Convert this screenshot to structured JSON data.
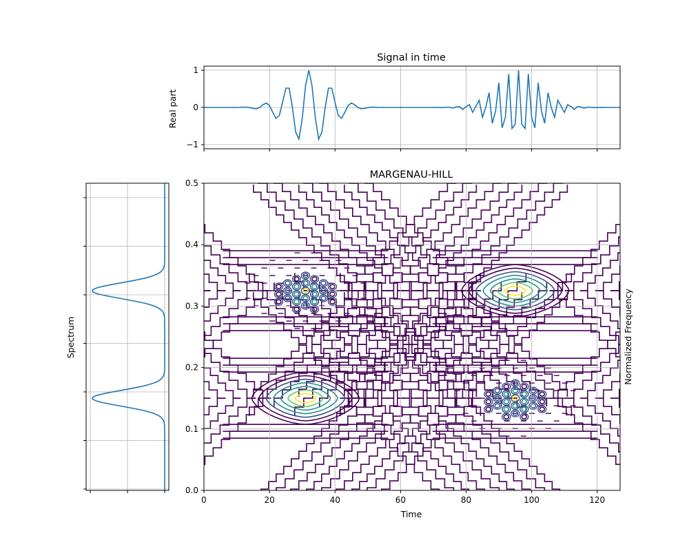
{
  "chart_data": [
    {
      "type": "line",
      "title": "Signal in time",
      "ylabel": "Real part",
      "xlim": [
        0,
        127
      ],
      "ylim": [
        -1,
        1
      ],
      "yticks": [
        -1,
        0,
        1
      ],
      "ytick_labels": [
        "−1",
        "0",
        "1"
      ],
      "xticks": [
        0,
        20,
        40,
        60,
        80,
        100,
        120
      ],
      "grid": true,
      "line_color": "#1f77b4",
      "components": [
        {
          "center": 32,
          "width": 9,
          "frequency": 0.15
        },
        {
          "center": 96,
          "width": 10,
          "frequency": 0.325
        }
      ]
    },
    {
      "type": "line",
      "ylabel": "Spectrum",
      "orientation": "vertical",
      "ylim": [
        0,
        0.5
      ],
      "grid": true,
      "line_color": "#1f77b4",
      "peaks": [
        {
          "frequency": 0.15,
          "level": 1.0
        },
        {
          "frequency": 0.325,
          "level": 1.0
        }
      ]
    },
    {
      "type": "contour",
      "title": "MARGENAU-HILL",
      "xlabel": "Time",
      "ylabel": "Normalized Frequency",
      "xlim": [
        0,
        127
      ],
      "ylim": [
        0,
        0.5
      ],
      "xticks": [
        0,
        20,
        40,
        60,
        80,
        100,
        120
      ],
      "xtick_labels": [
        "0",
        "20",
        "40",
        "60",
        "80",
        "100",
        "120"
      ],
      "yticks": [
        0.0,
        0.1,
        0.2,
        0.3,
        0.4,
        0.5
      ],
      "ytick_labels": [
        "0.0",
        "0.1",
        "0.2",
        "0.3",
        "0.4",
        "0.5"
      ],
      "grid": true,
      "colormap": [
        "#440154",
        "#3b528b",
        "#21908d",
        "#5dc962",
        "#fde725"
      ],
      "auto_terms": [
        {
          "time": 31,
          "frequency": 0.15
        },
        {
          "time": 95,
          "frequency": 0.325
        }
      ],
      "interference_terms": [
        {
          "time": 31,
          "frequency": 0.325
        },
        {
          "time": 95,
          "frequency": 0.15
        }
      ]
    }
  ]
}
